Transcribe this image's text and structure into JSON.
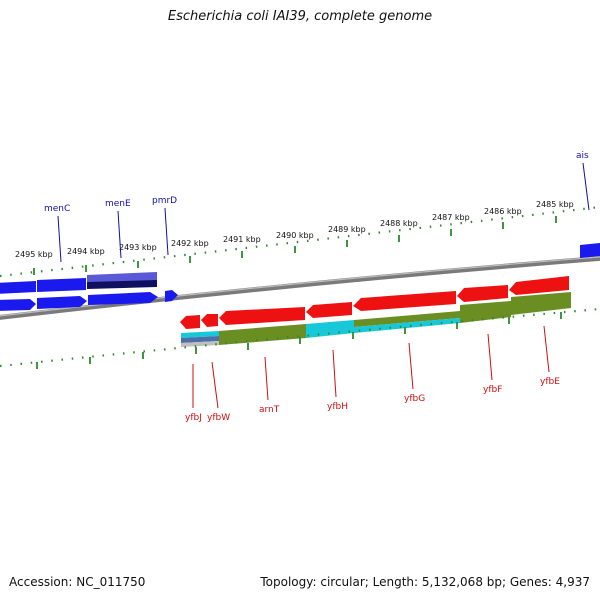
{
  "title": "Escherichia coli IAI39, complete genome",
  "footer": {
    "accession": "Accession: NC_011750",
    "summary": "Topology: circular; Length: 5,132,068 bp; Genes: 4,937"
  },
  "colors": {
    "forward_gene": "#1a1aee",
    "reverse_gene": "#ee1111",
    "cog_green": "#6b8e23",
    "cog_cyan": "#18c8d8",
    "dark_navy": "#101060",
    "backbone": "#888888",
    "tick": "#2a8a2a",
    "top_label": "#1010b0",
    "bottom_label": "#cc1010"
  },
  "scale_labels": [
    "2495 kbp",
    "2494 kbp",
    "2493 kbp",
    "2492 kbp",
    "2491 kbp",
    "2490 kbp",
    "2489 kbp",
    "2488 kbp",
    "2487 kbp",
    "2486 kbp",
    "2485 kbp"
  ],
  "top_genes": [
    "menC",
    "menE",
    "pmrD",
    "ais"
  ],
  "bottom_genes": [
    "yfbJ",
    "yfbW",
    "arnT",
    "yfbH",
    "yfbG",
    "yfbF",
    "yfbE"
  ]
}
